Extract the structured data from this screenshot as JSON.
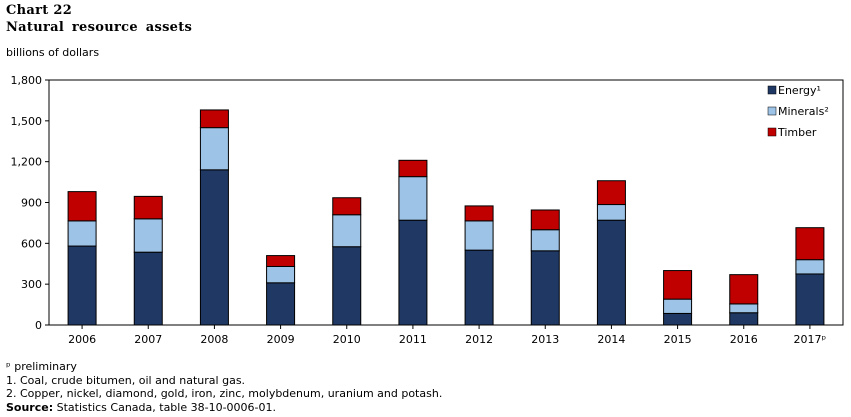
{
  "header": {
    "chart_number": "Chart 22",
    "title": "Natural resource assets",
    "unit_label": "billions of dollars"
  },
  "notes": {
    "preliminary": "ᵖ preliminary",
    "note1": "1. Coal, crude bitumen, oil and natural gas.",
    "note2": "2. Copper, nickel, diamond, gold, iron, zinc, molybdenum, uranium and potash.",
    "source_label": "Source:",
    "source_text": " Statistics Canada, table 38-10-0006-01."
  },
  "chart_data": {
    "type": "bar",
    "stacked": true,
    "title": "Natural resource assets",
    "ylabel": "billions of dollars",
    "xlabel": "",
    "ylim": [
      0,
      1800
    ],
    "yticks": [
      0,
      300,
      600,
      900,
      1200,
      1500,
      1800
    ],
    "ytick_labels": [
      "0",
      "300",
      "600",
      "900",
      "1,200",
      "1,500",
      "1,800"
    ],
    "grid": false,
    "legend_position": "top-right",
    "categories": [
      "2006",
      "2007",
      "2008",
      "2009",
      "2010",
      "2011",
      "2012",
      "2013",
      "2014",
      "2015",
      "2016",
      "2017ᵖ"
    ],
    "series": [
      {
        "name": "Energy¹",
        "color": "#1f3864",
        "values": [
          580,
          535,
          1140,
          310,
          575,
          770,
          550,
          545,
          770,
          85,
          90,
          375
        ]
      },
      {
        "name": "Minerals²",
        "color": "#9dc3e6",
        "values": [
          185,
          245,
          310,
          120,
          235,
          320,
          215,
          155,
          115,
          105,
          65,
          105
        ]
      },
      {
        "name": "Timber",
        "color": "#c00000",
        "values": [
          215,
          165,
          130,
          80,
          125,
          120,
          110,
          145,
          175,
          210,
          215,
          235
        ]
      }
    ]
  }
}
